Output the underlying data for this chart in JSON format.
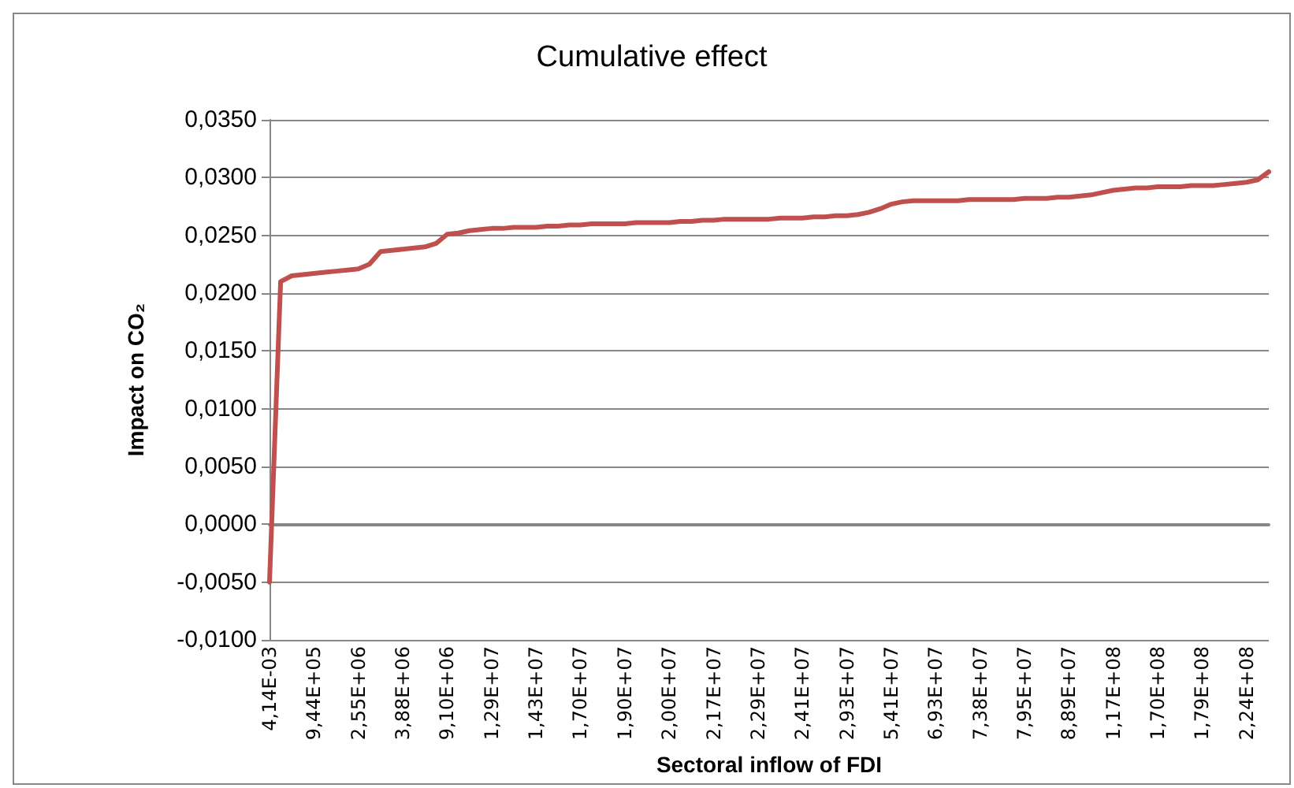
{
  "chart_data": {
    "type": "line",
    "title": "Cumulative effect",
    "xlabel": "Sectoral inflow of FDI",
    "ylabel": "Impact on CO₂",
    "categories": [
      "4,14E-03",
      null,
      null,
      null,
      "9,44E+05",
      null,
      null,
      null,
      "2,55E+06",
      null,
      null,
      null,
      "3,88E+06",
      null,
      null,
      null,
      "9,10E+06",
      null,
      null,
      null,
      "1,29E+07",
      null,
      null,
      null,
      "1,43E+07",
      null,
      null,
      null,
      "1,70E+07",
      null,
      null,
      null,
      "1,90E+07",
      null,
      null,
      null,
      "2,00E+07",
      null,
      null,
      null,
      "2,17E+07",
      null,
      null,
      null,
      "2,29E+07",
      null,
      null,
      null,
      "2,41E+07",
      null,
      null,
      null,
      "2,93E+07",
      null,
      null,
      null,
      "5,41E+07",
      null,
      null,
      null,
      "6,93E+07",
      null,
      null,
      null,
      "7,38E+07",
      null,
      null,
      null,
      "7,95E+07",
      null,
      null,
      null,
      "8,89E+07",
      null,
      null,
      null,
      "1,17E+08",
      null,
      null,
      null,
      "1,70E+08",
      null,
      null,
      null,
      "1,79E+08",
      null,
      null,
      null,
      "2,24E+08",
      null,
      null
    ],
    "series": [
      {
        "color": "#c0504d",
        "values": [
          -0.005,
          0.021,
          0.0215,
          0.0216,
          0.0217,
          0.0218,
          0.0219,
          0.022,
          0.0221,
          0.0225,
          0.0236,
          0.0237,
          0.0238,
          0.0239,
          0.024,
          0.0243,
          0.0251,
          0.0252,
          0.0254,
          0.0255,
          0.0256,
          0.0256,
          0.0257,
          0.0257,
          0.0257,
          0.0258,
          0.0258,
          0.0259,
          0.0259,
          0.026,
          0.026,
          0.026,
          0.026,
          0.0261,
          0.0261,
          0.0261,
          0.0261,
          0.0262,
          0.0262,
          0.0263,
          0.0263,
          0.0264,
          0.0264,
          0.0264,
          0.0264,
          0.0264,
          0.0265,
          0.0265,
          0.0265,
          0.0266,
          0.0266,
          0.0267,
          0.0267,
          0.0268,
          0.027,
          0.0273,
          0.0277,
          0.0279,
          0.028,
          0.028,
          0.028,
          0.028,
          0.028,
          0.0281,
          0.0281,
          0.0281,
          0.0281,
          0.0281,
          0.0282,
          0.0282,
          0.0282,
          0.0283,
          0.0283,
          0.0284,
          0.0285,
          0.0287,
          0.0289,
          0.029,
          0.0291,
          0.0291,
          0.0292,
          0.0292,
          0.0292,
          0.0293,
          0.0293,
          0.0293,
          0.0294,
          0.0295,
          0.0296,
          0.0298,
          0.0305
        ]
      }
    ],
    "ylim": [
      -0.01,
      0.035
    ],
    "yticks": [
      {
        "value": -0.01,
        "label": "-0,0100"
      },
      {
        "value": -0.005,
        "label": "-0,0050"
      },
      {
        "value": 0,
        "label": "0,0000"
      },
      {
        "value": 0.005,
        "label": "0,0050"
      },
      {
        "value": 0.01,
        "label": "0,0100"
      },
      {
        "value": 0.015,
        "label": "0,0150"
      },
      {
        "value": 0.02,
        "label": "0,0200"
      },
      {
        "value": 0.025,
        "label": "0,0250"
      },
      {
        "value": 0.03,
        "label": "0,0300"
      },
      {
        "value": 0.035,
        "label": "0,0350"
      }
    ],
    "grid": "y",
    "marker": "none",
    "line_style": "solid"
  }
}
